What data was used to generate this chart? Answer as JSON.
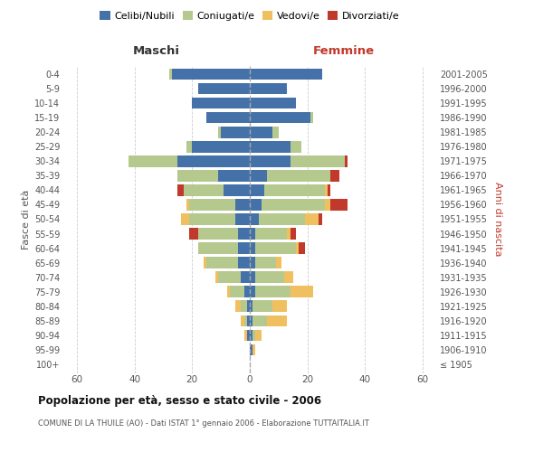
{
  "age_groups": [
    "100+",
    "95-99",
    "90-94",
    "85-89",
    "80-84",
    "75-79",
    "70-74",
    "65-69",
    "60-64",
    "55-59",
    "50-54",
    "45-49",
    "40-44",
    "35-39",
    "30-34",
    "25-29",
    "20-24",
    "15-19",
    "10-14",
    "5-9",
    "0-4"
  ],
  "birth_years": [
    "≤ 1905",
    "1906-1910",
    "1911-1915",
    "1916-1920",
    "1921-1925",
    "1926-1930",
    "1931-1935",
    "1936-1940",
    "1941-1945",
    "1946-1950",
    "1951-1955",
    "1956-1960",
    "1961-1965",
    "1966-1970",
    "1971-1975",
    "1976-1980",
    "1981-1985",
    "1986-1990",
    "1991-1995",
    "1996-2000",
    "2001-2005"
  ],
  "colors": {
    "celibi": "#4472a8",
    "coniugati": "#b5c98e",
    "vedovi": "#f0c060",
    "divorziati": "#c0392b"
  },
  "maschi": {
    "celibi": [
      0,
      0,
      1,
      1,
      1,
      2,
      3,
      4,
      4,
      4,
      5,
      5,
      9,
      11,
      25,
      20,
      10,
      15,
      20,
      18,
      27
    ],
    "coniugati": [
      0,
      0,
      0,
      1,
      2,
      5,
      8,
      11,
      14,
      14,
      16,
      16,
      14,
      14,
      17,
      2,
      1,
      0,
      0,
      0,
      1
    ],
    "vedovi": [
      0,
      0,
      1,
      1,
      2,
      1,
      1,
      1,
      0,
      0,
      3,
      1,
      0,
      0,
      0,
      0,
      0,
      0,
      0,
      0,
      0
    ],
    "divorziati": [
      0,
      0,
      0,
      0,
      0,
      0,
      0,
      0,
      0,
      3,
      0,
      0,
      2,
      0,
      0,
      0,
      0,
      0,
      0,
      0,
      0
    ]
  },
  "femmine": {
    "celibi": [
      0,
      1,
      1,
      1,
      1,
      2,
      2,
      2,
      2,
      2,
      3,
      4,
      5,
      6,
      14,
      14,
      8,
      21,
      16,
      13,
      25
    ],
    "coniugati": [
      0,
      0,
      1,
      5,
      7,
      12,
      10,
      7,
      14,
      11,
      16,
      22,
      21,
      22,
      19,
      4,
      2,
      1,
      0,
      0,
      0
    ],
    "vedovi": [
      0,
      1,
      2,
      7,
      5,
      8,
      3,
      2,
      1,
      1,
      5,
      2,
      1,
      0,
      0,
      0,
      0,
      0,
      0,
      0,
      0
    ],
    "divorziati": [
      0,
      0,
      0,
      0,
      0,
      0,
      0,
      0,
      2,
      2,
      1,
      6,
      1,
      3,
      1,
      0,
      0,
      0,
      0,
      0,
      0
    ]
  },
  "xlim": 65,
  "title": "Popolazione per età, sesso e stato civile - 2006",
  "subtitle": "COMUNE DI LA THUILE (AO) - Dati ISTAT 1° gennaio 2006 - Elaborazione TUTTAITALIA.IT",
  "ylabel_left": "Fasce di età",
  "ylabel_right": "Anni di nascita",
  "header_left": "Maschi",
  "header_right": "Femmine"
}
